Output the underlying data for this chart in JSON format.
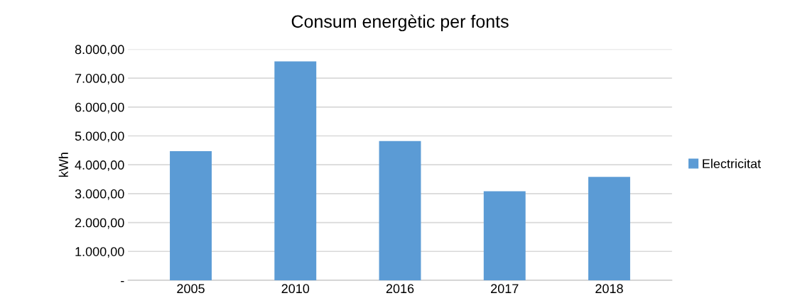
{
  "chart_data": {
    "type": "bar",
    "title": "Consum energètic per fonts",
    "ylabel": "kWh",
    "categories": [
      "2005",
      "2010",
      "2016",
      "2017",
      "2018"
    ],
    "series": [
      {
        "name": "Electricitat",
        "color": "#5b9bd5",
        "values": [
          4470,
          7580,
          4820,
          3080,
          3580
        ]
      }
    ],
    "ylim": [
      0,
      8000
    ],
    "yticks": [
      {
        "value": 0,
        "label": "-"
      },
      {
        "value": 1000,
        "label": "1.000,00"
      },
      {
        "value": 2000,
        "label": "2.000,00"
      },
      {
        "value": 3000,
        "label": "3.000,00"
      },
      {
        "value": 4000,
        "label": "4.000,00"
      },
      {
        "value": 5000,
        "label": "5.000,00"
      },
      {
        "value": 6000,
        "label": "6.000,00"
      },
      {
        "value": 7000,
        "label": "7.000,00"
      },
      {
        "value": 8000,
        "label": "8.000,00"
      }
    ],
    "grid": "y",
    "legend": "right"
  }
}
